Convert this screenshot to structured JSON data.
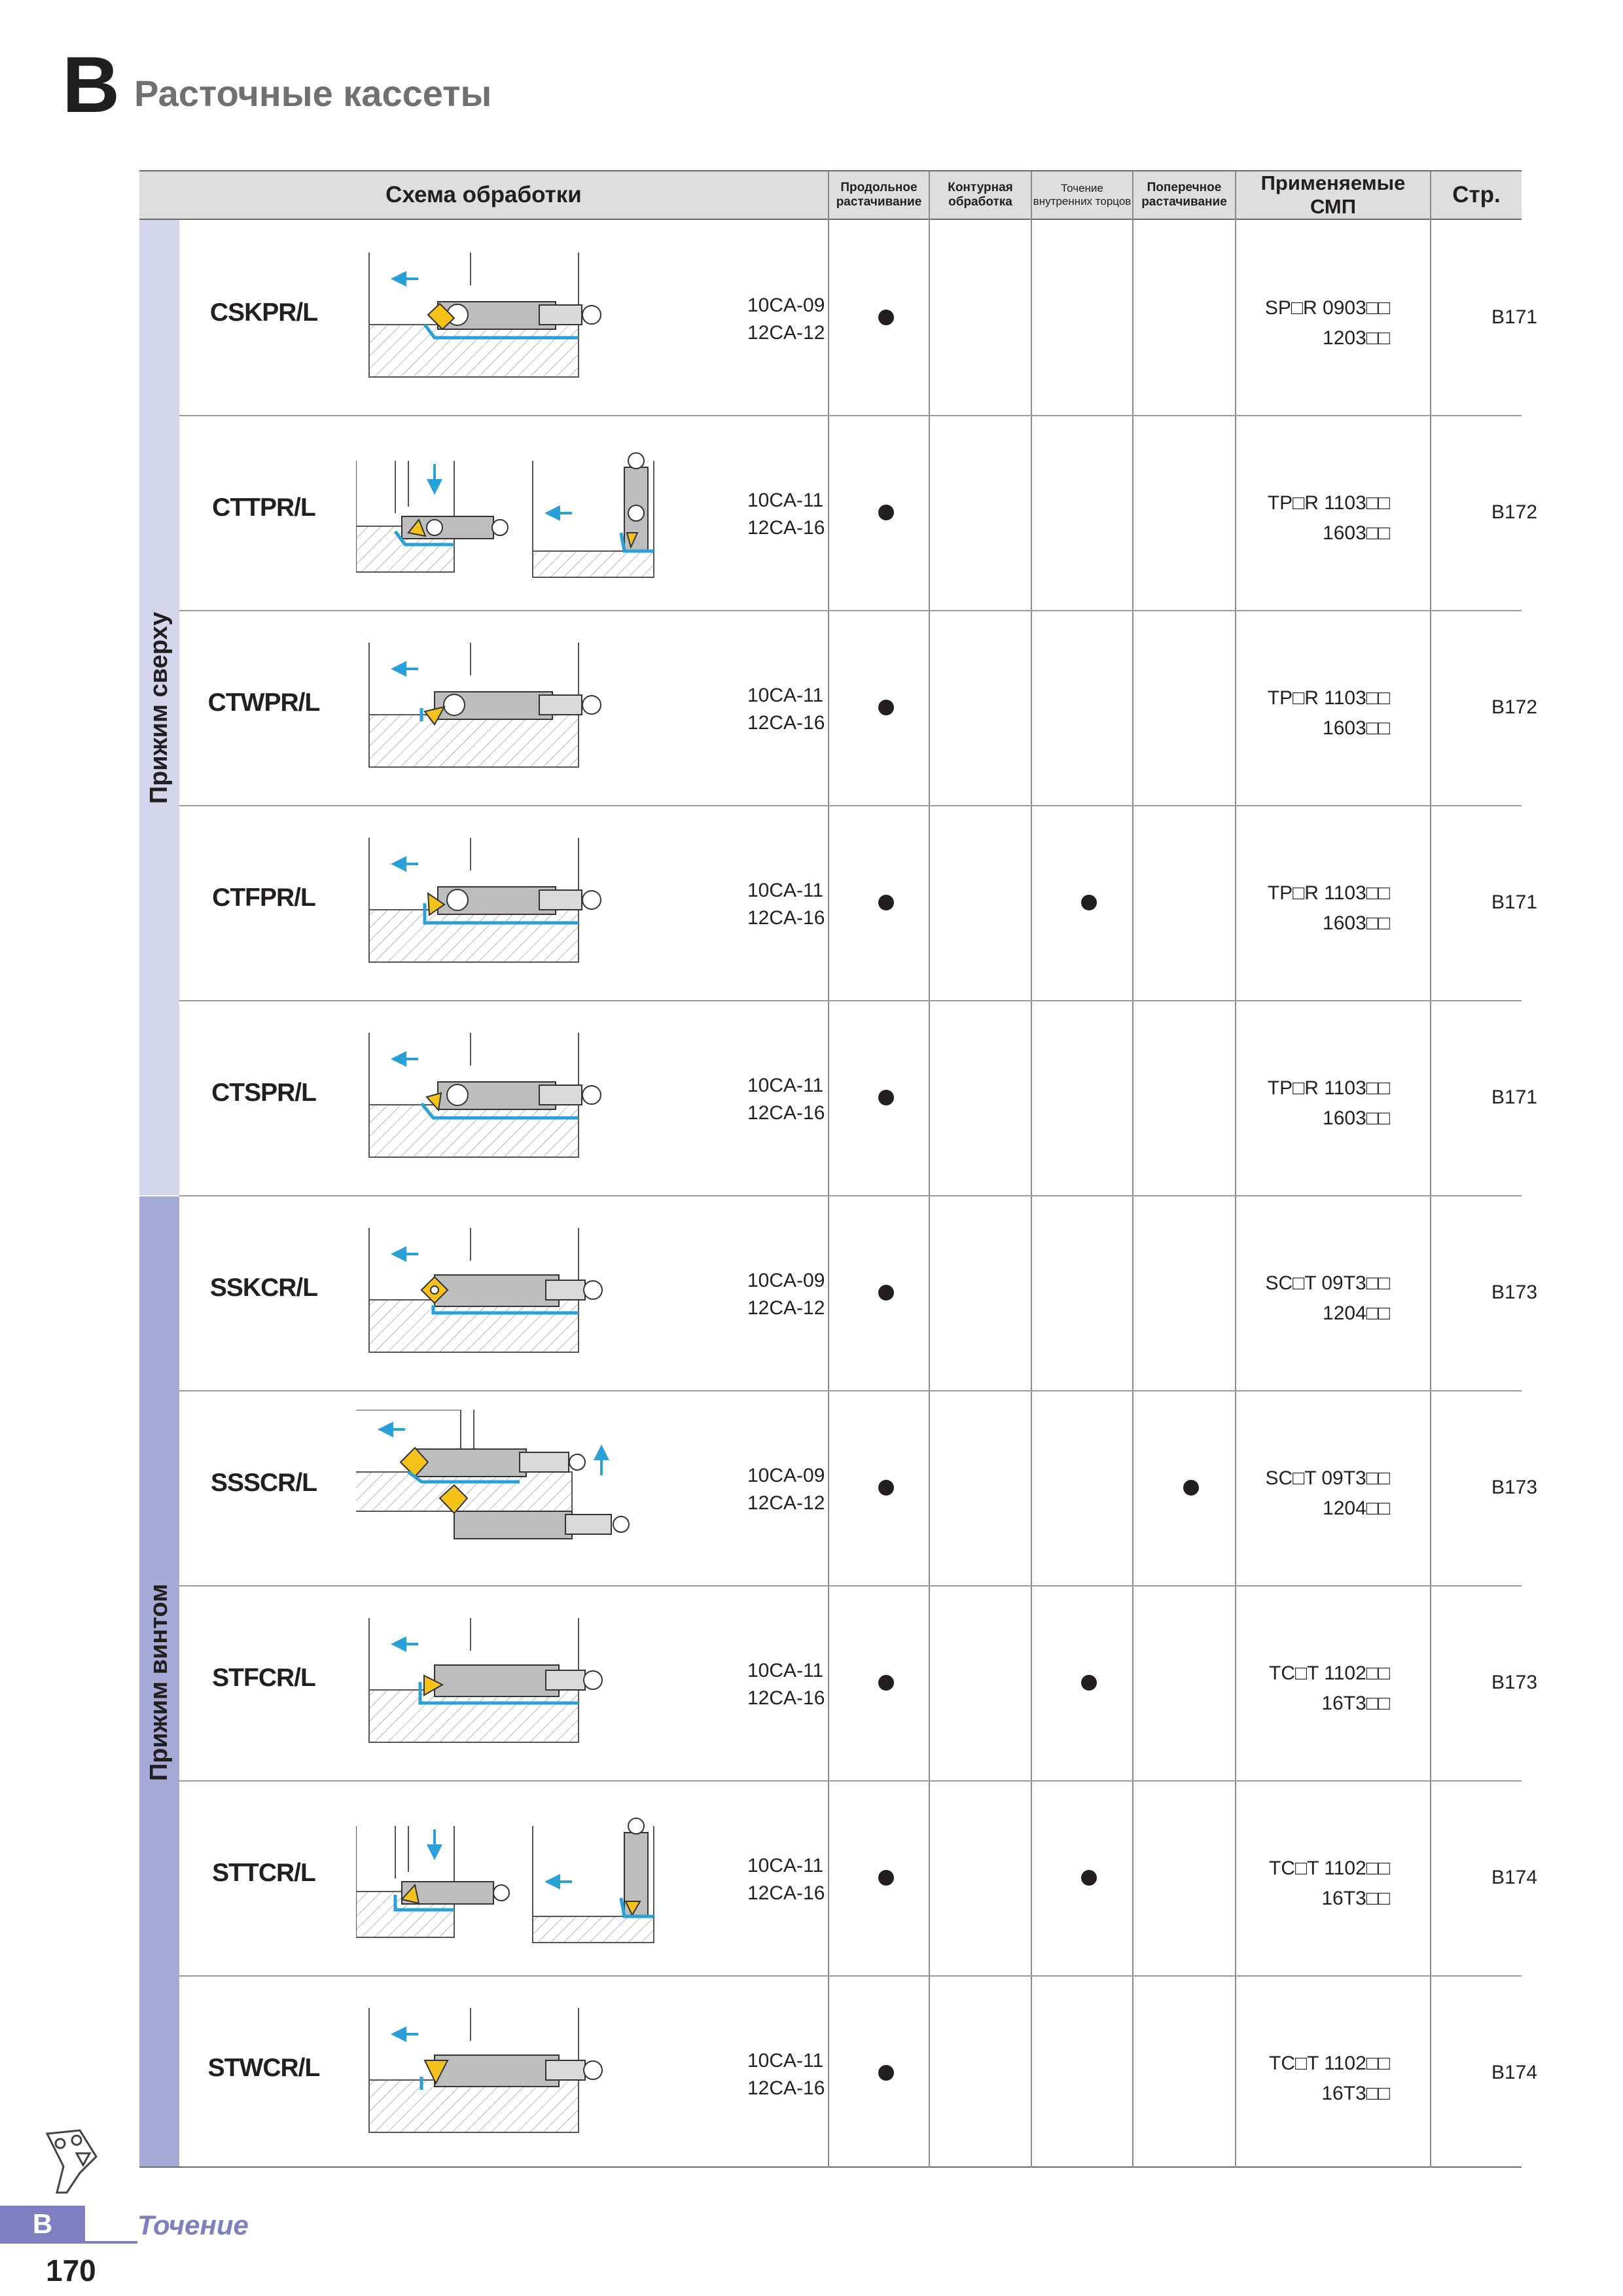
{
  "header": {
    "section_letter": "B",
    "title": "Расточные кассеты"
  },
  "table": {
    "columns": {
      "scheme": "Схема обработки",
      "op1": [
        "Продольное",
        "растачивание"
      ],
      "op2": [
        "Контурная",
        "обработка"
      ],
      "op3": [
        "Точение",
        "внутренних торцов"
      ],
      "op4": [
        "Поперечное",
        "растачивание"
      ],
      "inserts": "Применяемые СМП",
      "page": "Стр."
    },
    "groups": [
      {
        "label": "Прижим сверху"
      },
      {
        "label": "Прижим винтом"
      }
    ],
    "rows": [
      {
        "code": "CSKPR/L",
        "sizes": [
          "10CA-09",
          "12CA-12"
        ],
        "ops": [
          true,
          false,
          false,
          false
        ],
        "insert_line1": "SP□R 0903□□",
        "insert_line2": "1203□□",
        "page": "B171"
      },
      {
        "code": "CTTPR/L",
        "sizes": [
          "10CA-11",
          "12CA-16"
        ],
        "ops": [
          true,
          false,
          false,
          false
        ],
        "insert_line1": "TP□R 1103□□",
        "insert_line2": "1603□□",
        "page": "B172"
      },
      {
        "code": "CTWPR/L",
        "sizes": [
          "10CA-11",
          "12CA-16"
        ],
        "ops": [
          true,
          false,
          false,
          false
        ],
        "insert_line1": "TP□R 1103□□",
        "insert_line2": "1603□□",
        "page": "B172"
      },
      {
        "code": "CTFPR/L",
        "sizes": [
          "10CA-11",
          "12CA-16"
        ],
        "ops": [
          true,
          false,
          true,
          false
        ],
        "insert_line1": "TP□R 1103□□",
        "insert_line2": "1603□□",
        "page": "B171"
      },
      {
        "code": "CTSPR/L",
        "sizes": [
          "10CA-11",
          "12CA-16"
        ],
        "ops": [
          true,
          false,
          false,
          false
        ],
        "insert_line1": "TP□R 1103□□",
        "insert_line2": "1603□□",
        "page": "B171"
      },
      {
        "code": "SSKCR/L",
        "sizes": [
          "10CA-09",
          "12CA-12"
        ],
        "ops": [
          true,
          false,
          false,
          false
        ],
        "insert_line1": "SC□T 09T3□□",
        "insert_line2": "1204□□",
        "page": "B173"
      },
      {
        "code": "SSSCR/L",
        "sizes": [
          "10CA-09",
          "12CA-12"
        ],
        "ops": [
          true,
          false,
          false,
          true
        ],
        "insert_line1": "SC□T 09T3□□",
        "insert_line2": "1204□□",
        "page": "B173"
      },
      {
        "code": "STFCR/L",
        "sizes": [
          "10CA-11",
          "12CA-16"
        ],
        "ops": [
          true,
          false,
          true,
          false
        ],
        "insert_line1": "TC□T 1102□□",
        "insert_line2": "16T3□□",
        "page": "B173"
      },
      {
        "code": "STTCR/L",
        "sizes": [
          "10CA-11",
          "12CA-16"
        ],
        "ops": [
          true,
          false,
          true,
          false
        ],
        "insert_line1": "TC□T 1102□□",
        "insert_line2": "16T3□□",
        "page": "B174"
      },
      {
        "code": "STWCR/L",
        "sizes": [
          "10CA-11",
          "12CA-16"
        ],
        "ops": [
          true,
          false,
          false,
          false
        ],
        "insert_line1": "TC□T 1102□□",
        "insert_line2": "16T3□□",
        "page": "B174"
      }
    ]
  },
  "footer": {
    "tab_letter": "B",
    "section": "Точение",
    "page_number": "170"
  },
  "colors": {
    "group1": "#d4d5ea",
    "group2": "#a7a9d6",
    "accent": "#7f7fbf",
    "cut_path": "#2aa0d8",
    "insert": "#f4c21b"
  }
}
